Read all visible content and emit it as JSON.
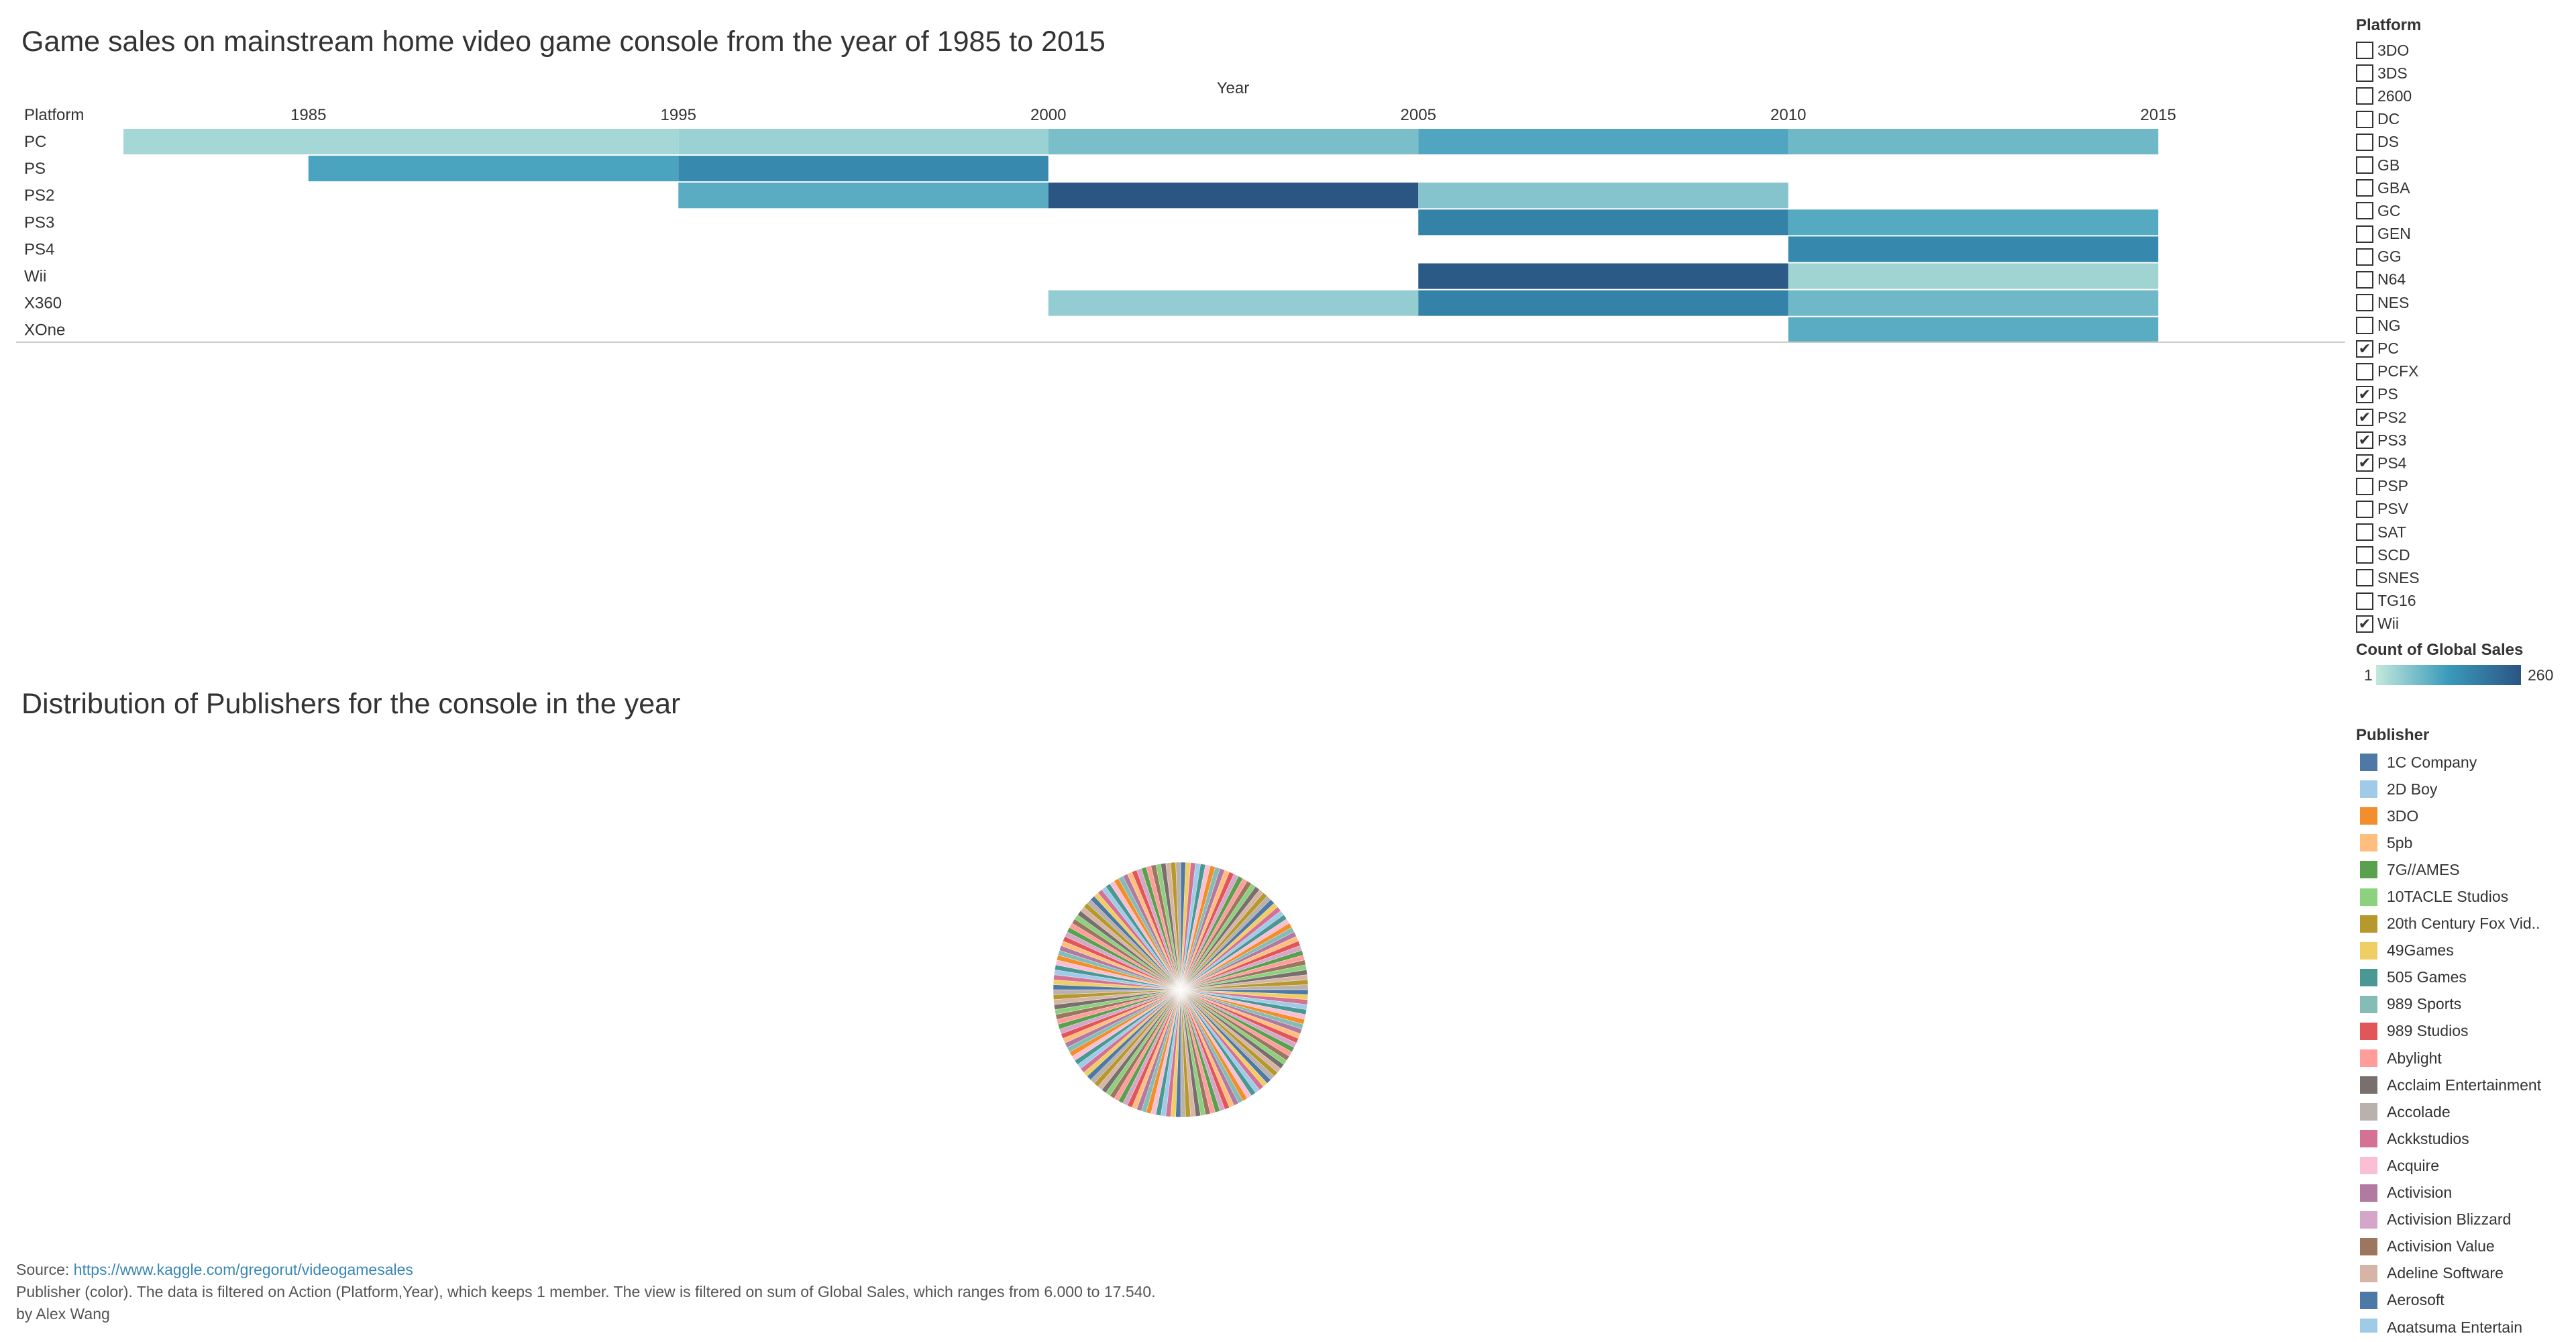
{
  "heatmap": {
    "title": "Game sales on mainstream home video game console from the year of 1985 to 2015",
    "column_header": "Year",
    "row_header": "Platform"
  },
  "pie": {
    "title": "Distribution of Publishers for the console in the year"
  },
  "chart_data": [
    {
      "type": "heatmap",
      "title": "Game sales on mainstream home video game console from the year of 1985 to 2015",
      "xlabel": "Year",
      "ylabel": "Platform",
      "x": [
        "1985",
        "1995",
        "2000",
        "2005",
        "2010",
        "2015"
      ],
      "y": [
        "PC",
        "PS",
        "PS2",
        "PS3",
        "PS4",
        "Wii",
        "X360",
        "XOne"
      ],
      "measure": "Count of Global Sales",
      "color_range": [
        1,
        260
      ],
      "colors": [
        "#c3e8dc",
        "#3a9abb",
        "#2b5583"
      ],
      "cells": [
        {
          "row": "PC",
          "from": "1985",
          "to": "2000",
          "value": 30
        },
        {
          "row": "PC",
          "from": "2000",
          "to": "2005",
          "value": 40
        },
        {
          "row": "PC",
          "from": "2005",
          "to": "2010",
          "value": 70
        },
        {
          "row": "PC",
          "from": "2010",
          "to": "2015",
          "value": 110
        },
        {
          "row": "PC",
          "from": "2015",
          "to": "end",
          "value": 80
        },
        {
          "row": "PS",
          "from": "1995",
          "to": "2000",
          "value": 115
        },
        {
          "row": "PS",
          "from": "2000",
          "to": "2005",
          "value": 160
        },
        {
          "row": "PS2",
          "from": "2000",
          "to": "2005",
          "value": 100
        },
        {
          "row": "PS2",
          "from": "2005",
          "to": "2010",
          "value": 260
        },
        {
          "row": "PS2",
          "from": "2010",
          "to": "2015",
          "value": 60
        },
        {
          "row": "PS3",
          "from": "2010",
          "to": "2015",
          "value": 175
        },
        {
          "row": "PS3",
          "from": "2015",
          "to": "end",
          "value": 105
        },
        {
          "row": "PS4",
          "from": "2015",
          "to": "end",
          "value": 165
        },
        {
          "row": "Wii",
          "from": "2010",
          "to": "2015",
          "value": 250
        },
        {
          "row": "Wii",
          "from": "2015",
          "to": "end",
          "value": 35
        },
        {
          "row": "X360",
          "from": "2005",
          "to": "2010",
          "value": 45
        },
        {
          "row": "X360",
          "from": "2010",
          "to": "2015",
          "value": 175
        },
        {
          "row": "X360",
          "from": "2015",
          "to": "end",
          "value": 80
        },
        {
          "row": "XOne",
          "from": "2015",
          "to": "end",
          "value": 100
        }
      ]
    },
    {
      "type": "pie",
      "title": "Distribution of Publishers for the console in the year",
      "slice_count": 160,
      "colors": [
        "#4e79a7",
        "#a0cbe8",
        "#f28e2b",
        "#ffbe7d",
        "#59a14f",
        "#8cd17d",
        "#b6992d",
        "#f1ce63",
        "#499894",
        "#86bcb6",
        "#e15759",
        "#ff9d9a",
        "#79706e",
        "#bab0ac",
        "#d37295",
        "#fabfd2",
        "#b07aa1",
        "#d4a6c8",
        "#9d7660",
        "#d7b5a6"
      ]
    }
  ],
  "platform_filter": {
    "title": "Platform",
    "items": [
      {
        "label": "3DO",
        "checked": false
      },
      {
        "label": "3DS",
        "checked": false
      },
      {
        "label": "2600",
        "checked": false
      },
      {
        "label": "DC",
        "checked": false
      },
      {
        "label": "DS",
        "checked": false
      },
      {
        "label": "GB",
        "checked": false
      },
      {
        "label": "GBA",
        "checked": false
      },
      {
        "label": "GC",
        "checked": false
      },
      {
        "label": "GEN",
        "checked": false
      },
      {
        "label": "GG",
        "checked": false
      },
      {
        "label": "N64",
        "checked": false
      },
      {
        "label": "NES",
        "checked": false
      },
      {
        "label": "NG",
        "checked": false
      },
      {
        "label": "PC",
        "checked": true
      },
      {
        "label": "PCFX",
        "checked": false
      },
      {
        "label": "PS",
        "checked": true
      },
      {
        "label": "PS2",
        "checked": true
      },
      {
        "label": "PS3",
        "checked": true
      },
      {
        "label": "PS4",
        "checked": true
      },
      {
        "label": "PSP",
        "checked": false
      },
      {
        "label": "PSV",
        "checked": false
      },
      {
        "label": "SAT",
        "checked": false
      },
      {
        "label": "SCD",
        "checked": false
      },
      {
        "label": "SNES",
        "checked": false
      },
      {
        "label": "TG16",
        "checked": false
      },
      {
        "label": "Wii",
        "checked": true
      }
    ]
  },
  "color_legend": {
    "title": "Count of Global Sales",
    "min_label": "1",
    "max_label": "260"
  },
  "publisher_legend": {
    "title": "Publisher",
    "items": [
      {
        "label": "1C Company",
        "color": "#4e79a7"
      },
      {
        "label": "2D Boy",
        "color": "#a0cbe8"
      },
      {
        "label": "3DO",
        "color": "#f28e2b"
      },
      {
        "label": "5pb",
        "color": "#ffbe7d"
      },
      {
        "label": "7G//AMES",
        "color": "#59a14f"
      },
      {
        "label": "10TACLE Studios",
        "color": "#8cd17d"
      },
      {
        "label": "20th Century Fox Vid..",
        "color": "#b6992d"
      },
      {
        "label": "49Games",
        "color": "#f1ce63"
      },
      {
        "label": "505 Games",
        "color": "#499894"
      },
      {
        "label": "989 Sports",
        "color": "#86bcb6"
      },
      {
        "label": "989 Studios",
        "color": "#e15759"
      },
      {
        "label": "Abylight",
        "color": "#ff9d9a"
      },
      {
        "label": "Acclaim Entertainment",
        "color": "#79706e"
      },
      {
        "label": "Accolade",
        "color": "#bab0ac"
      },
      {
        "label": "Ackkstudios",
        "color": "#d37295"
      },
      {
        "label": "Acquire",
        "color": "#fabfd2"
      },
      {
        "label": "Activision",
        "color": "#b07aa1"
      },
      {
        "label": "Activision Blizzard",
        "color": "#d4a6c8"
      },
      {
        "label": "Activision Value",
        "color": "#9d7660"
      },
      {
        "label": "Adeline Software",
        "color": "#d7b5a6"
      },
      {
        "label": "Aerosoft",
        "color": "#4e79a7"
      },
      {
        "label": "Agatsuma Entertain",
        "color": "#a0cbe8"
      }
    ]
  },
  "footer": {
    "source_label": "Source: ",
    "source_link": "https://www.kaggle.com/gregorut/videogamesales",
    "filter_note": "Publisher (color). The data is filtered on Action (Platform,Year), which keeps 1 member. The view is filtered on sum of Global Sales, which ranges from 6.000 to 17.540.",
    "author": "by Alex Wang"
  }
}
